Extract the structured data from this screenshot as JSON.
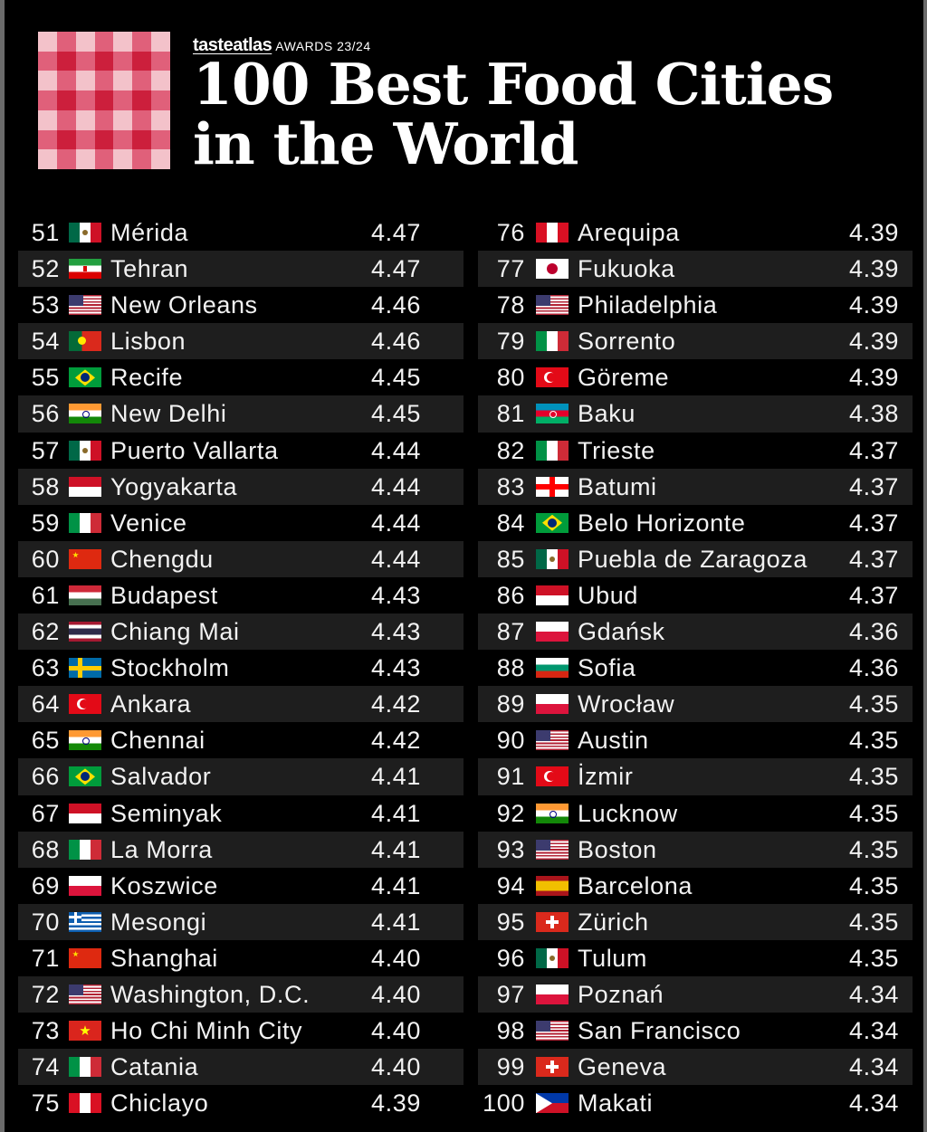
{
  "header": {
    "brand": "tasteatlas",
    "awards": "AWARDS 23/24",
    "title_line1": "100 Best Food Cities",
    "title_line2": "in the World"
  },
  "colors": {
    "background": "#000000",
    "logo_red": "#d8203c",
    "logo_pink": "#f0a0ad",
    "row_stripe": "#1e1e1e"
  },
  "rankings": [
    {
      "rank": "51",
      "city": "Mérida",
      "score": "4.47",
      "flag": "mx"
    },
    {
      "rank": "52",
      "city": "Tehran",
      "score": "4.47",
      "flag": "ir"
    },
    {
      "rank": "53",
      "city": "New Orleans",
      "score": "4.46",
      "flag": "us"
    },
    {
      "rank": "54",
      "city": "Lisbon",
      "score": "4.46",
      "flag": "pt"
    },
    {
      "rank": "55",
      "city": "Recife",
      "score": "4.45",
      "flag": "br"
    },
    {
      "rank": "56",
      "city": "New Delhi",
      "score": "4.45",
      "flag": "in"
    },
    {
      "rank": "57",
      "city": "Puerto Vallarta",
      "score": "4.44",
      "flag": "mx"
    },
    {
      "rank": "58",
      "city": "Yogyakarta",
      "score": "4.44",
      "flag": "id"
    },
    {
      "rank": "59",
      "city": "Venice",
      "score": "4.44",
      "flag": "it"
    },
    {
      "rank": "60",
      "city": "Chengdu",
      "score": "4.44",
      "flag": "cn"
    },
    {
      "rank": "61",
      "city": "Budapest",
      "score": "4.43",
      "flag": "hu"
    },
    {
      "rank": "62",
      "city": "Chiang Mai",
      "score": "4.43",
      "flag": "th"
    },
    {
      "rank": "63",
      "city": "Stockholm",
      "score": "4.43",
      "flag": "se"
    },
    {
      "rank": "64",
      "city": "Ankara",
      "score": "4.42",
      "flag": "tr"
    },
    {
      "rank": "65",
      "city": "Chennai",
      "score": "4.42",
      "flag": "in"
    },
    {
      "rank": "66",
      "city": "Salvador",
      "score": "4.41",
      "flag": "br"
    },
    {
      "rank": "67",
      "city": "Seminyak",
      "score": "4.41",
      "flag": "id"
    },
    {
      "rank": "68",
      "city": "La Morra",
      "score": "4.41",
      "flag": "it"
    },
    {
      "rank": "69",
      "city": "Koszwice",
      "score": "4.41",
      "flag": "pl"
    },
    {
      "rank": "70",
      "city": "Mesongi",
      "score": "4.41",
      "flag": "gr"
    },
    {
      "rank": "71",
      "city": "Shanghai",
      "score": "4.40",
      "flag": "cn"
    },
    {
      "rank": "72",
      "city": "Washington, D.C.",
      "score": "4.40",
      "flag": "us"
    },
    {
      "rank": "73",
      "city": "Ho Chi Minh City",
      "score": "4.40",
      "flag": "vn"
    },
    {
      "rank": "74",
      "city": "Catania",
      "score": "4.40",
      "flag": "it"
    },
    {
      "rank": "75",
      "city": "Chiclayo",
      "score": "4.39",
      "flag": "pe"
    },
    {
      "rank": "76",
      "city": "Arequipa",
      "score": "4.39",
      "flag": "pe"
    },
    {
      "rank": "77",
      "city": "Fukuoka",
      "score": "4.39",
      "flag": "jp"
    },
    {
      "rank": "78",
      "city": "Philadelphia",
      "score": "4.39",
      "flag": "us"
    },
    {
      "rank": "79",
      "city": "Sorrento",
      "score": "4.39",
      "flag": "it"
    },
    {
      "rank": "80",
      "city": "Göreme",
      "score": "4.39",
      "flag": "tr"
    },
    {
      "rank": "81",
      "city": "Baku",
      "score": "4.38",
      "flag": "az"
    },
    {
      "rank": "82",
      "city": "Trieste",
      "score": "4.37",
      "flag": "it"
    },
    {
      "rank": "83",
      "city": "Batumi",
      "score": "4.37",
      "flag": "ge"
    },
    {
      "rank": "84",
      "city": "Belo Horizonte",
      "score": "4.37",
      "flag": "br"
    },
    {
      "rank": "85",
      "city": "Puebla de Zaragoza",
      "score": "4.37",
      "flag": "mx"
    },
    {
      "rank": "86",
      "city": "Ubud",
      "score": "4.37",
      "flag": "id"
    },
    {
      "rank": "87",
      "city": "Gdańsk",
      "score": "4.36",
      "flag": "pl"
    },
    {
      "rank": "88",
      "city": "Sofia",
      "score": "4.36",
      "flag": "bg"
    },
    {
      "rank": "89",
      "city": "Wrocław",
      "score": "4.35",
      "flag": "pl"
    },
    {
      "rank": "90",
      "city": "Austin",
      "score": "4.35",
      "flag": "us"
    },
    {
      "rank": "91",
      "city": "İzmir",
      "score": "4.35",
      "flag": "tr"
    },
    {
      "rank": "92",
      "city": "Lucknow",
      "score": "4.35",
      "flag": "in"
    },
    {
      "rank": "93",
      "city": "Boston",
      "score": "4.35",
      "flag": "us"
    },
    {
      "rank": "94",
      "city": "Barcelona",
      "score": "4.35",
      "flag": "es"
    },
    {
      "rank": "95",
      "city": "Zürich",
      "score": "4.35",
      "flag": "ch"
    },
    {
      "rank": "96",
      "city": "Tulum",
      "score": "4.35",
      "flag": "mx"
    },
    {
      "rank": "97",
      "city": "Poznań",
      "score": "4.34",
      "flag": "pl"
    },
    {
      "rank": "98",
      "city": "San Francisco",
      "score": "4.34",
      "flag": "us"
    },
    {
      "rank": "99",
      "city": "Geneva",
      "score": "4.34",
      "flag": "ch"
    },
    {
      "rank": "100",
      "city": "Makati",
      "score": "4.34",
      "flag": "ph"
    }
  ]
}
